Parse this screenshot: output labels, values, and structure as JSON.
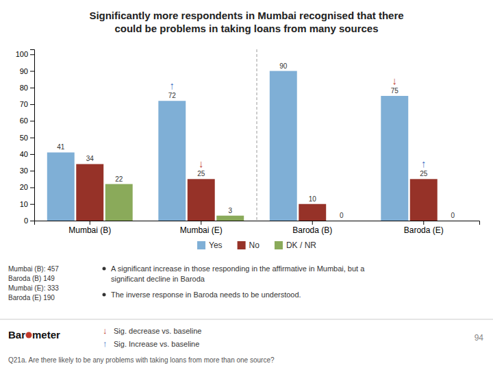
{
  "chart_data": {
    "type": "bar",
    "title": "Significantly more respondents in Mumbai recognised that there\ncould be problems in taking loans from many sources",
    "categories": [
      "Mumbai (B)",
      "Mumbai (E)",
      "Baroda (B)",
      "Baroda (E)"
    ],
    "series": [
      {
        "name": "Yes",
        "color": "#7fafd6",
        "values": [
          41,
          72,
          90,
          75
        ]
      },
      {
        "name": "No",
        "color": "#963228",
        "values": [
          34,
          25,
          10,
          25
        ]
      },
      {
        "name": "DK / NR",
        "color": "#8aaa5a",
        "values": [
          22,
          3,
          0,
          0
        ]
      }
    ],
    "ylim": [
      0,
      103
    ],
    "yticks": [
      0,
      10,
      20,
      30,
      40,
      50,
      60,
      70,
      80,
      90,
      100
    ],
    "grid": false,
    "legend": "bottom",
    "data_labels": true,
    "annotations": [
      {
        "text": "↑",
        "color": "#4472c4",
        "series": "Yes",
        "category": "Mumbai (E)"
      },
      {
        "text": "↓",
        "color": "#c0392b",
        "series": "No",
        "category": "Mumbai (E)"
      },
      {
        "text": "↓",
        "color": "#c0392b",
        "series": "Yes",
        "category": "Baroda (E)"
      },
      {
        "text": "↑",
        "color": "#4472c4",
        "series": "No",
        "category": "Baroda (E)"
      }
    ],
    "bullets": [
      "A significant increase in those responding in the affirmative in Mumbai, but a\nsignificant decline in Baroda",
      "The inverse response in Baroda needs to be understood."
    ],
    "sample_sizes": [
      "Mumbai (B): 457",
      "Baroda (B) 149",
      "Mumbai (E): 333",
      "Baroda (E) 190"
    ],
    "key": [
      {
        "symbol": "↓",
        "color": "#c0392b",
        "text": "Sig. decrease vs. baseline"
      },
      {
        "symbol": "↑",
        "color": "#4472c4",
        "text": "Sig. Increase vs. baseline"
      }
    ],
    "footnote": "Q21a. Are there likely to be any problems with taking loans from more than one source?",
    "page_number": "94",
    "logo": [
      "Bar",
      "meter"
    ]
  }
}
